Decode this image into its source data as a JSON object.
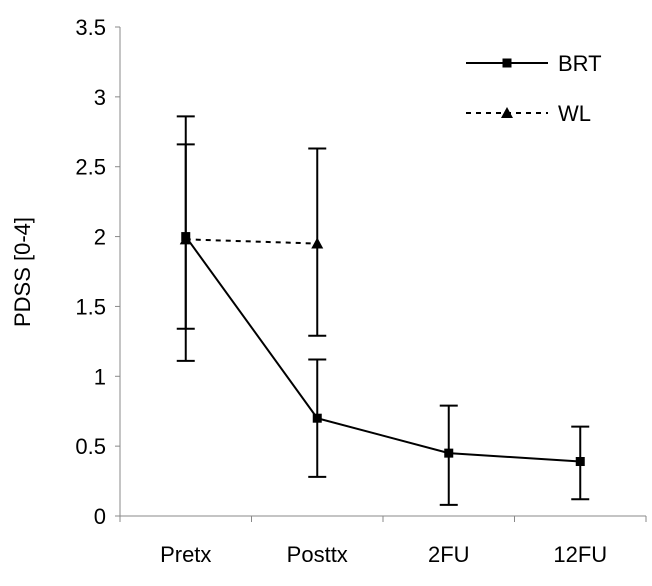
{
  "chart_data": {
    "type": "line",
    "title": "",
    "xlabel": "",
    "ylabel": "PDSS [0-4]",
    "ylim": [
      0,
      3.5
    ],
    "yticks": [
      0,
      0.5,
      1,
      1.5,
      2,
      2.5,
      3,
      3.5
    ],
    "ytick_labels": [
      "0",
      "0.5",
      "1",
      "1.5",
      "2",
      "2.5",
      "3",
      "3.5"
    ],
    "categories": [
      "Pretx",
      "Posttx",
      "2FU",
      "12FU"
    ],
    "grid": false,
    "legend_position": "top-right",
    "series": [
      {
        "name": "BRT",
        "style": "solid",
        "marker": "square",
        "values": [
          2.0,
          0.7,
          0.45,
          0.39
        ],
        "error_low": [
          1.11,
          0.28,
          0.08,
          0.12
        ],
        "error_high": [
          2.86,
          1.12,
          0.79,
          0.64
        ]
      },
      {
        "name": "WL",
        "style": "dotted",
        "marker": "triangle",
        "values": [
          1.98,
          1.95,
          null,
          null
        ],
        "error_low": [
          1.34,
          1.29,
          null,
          null
        ],
        "error_high": [
          2.66,
          2.63,
          null,
          null
        ]
      }
    ]
  }
}
